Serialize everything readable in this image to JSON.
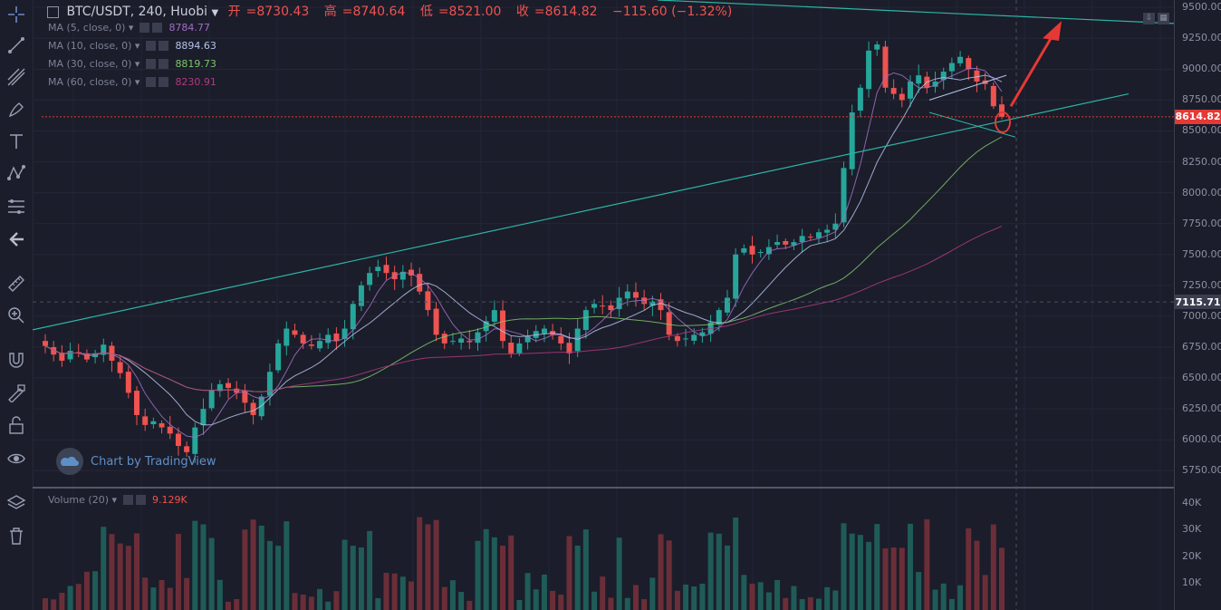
{
  "header": {
    "symbol": "BTC/USDT, 240, Huobi",
    "open_label": "开",
    "open": "8730.43",
    "high_label": "高",
    "high": "8740.64",
    "low_label": "低",
    "low": "8521.00",
    "close_label": "收",
    "close": "8614.82",
    "change": "−115.60 (−1.32%)"
  },
  "indicators": [
    {
      "label": "MA (5, close, 0)",
      "value": "8784.77",
      "color": "#a16ec4"
    },
    {
      "label": "MA (10, close, 0)",
      "value": "8894.63",
      "color": "#b5c3e8"
    },
    {
      "label": "MA (30, close, 0)",
      "value": "8819.73",
      "color": "#7fc46b"
    },
    {
      "label": "MA (60, close, 0)",
      "value": "8230.91",
      "color": "#b03a7f"
    }
  ],
  "volume": {
    "label": "Volume (20)",
    "value": "9.129K"
  },
  "watermark": "Chart by TradingView",
  "price_axis": {
    "ticks": [
      "9500.00",
      "9250.00",
      "9000.00",
      "8750.00",
      "8500.00",
      "8250.00",
      "8000.00",
      "7750.00",
      "7500.00",
      "7250.00",
      "7000.00",
      "6750.00",
      "6500.00",
      "6250.00",
      "6000.00",
      "5750.00"
    ],
    "tick_values": [
      9500,
      9250,
      9000,
      8750,
      8500,
      8250,
      8000,
      7750,
      7500,
      7250,
      7000,
      6750,
      6500,
      6250,
      6000,
      5750
    ],
    "current_price": "8614.82",
    "crosshair_price": "7115.71",
    "current_value": 8614.82,
    "crosshair_value": 7115.71
  },
  "volume_axis": {
    "ticks": [
      "40K",
      "30K",
      "20K",
      "10K"
    ],
    "tick_values": [
      40000,
      30000,
      20000,
      10000
    ]
  },
  "colors": {
    "up": "#26a69a",
    "down": "#ef5350",
    "accent": "#e53935",
    "trendline": "#2db4a6"
  },
  "toolbar": [
    "crosshair-icon",
    "trendline-icon",
    "fib-icon",
    "brush-icon",
    "text-icon",
    "pattern-icon",
    "measure-icon",
    "back-arrow-icon",
    "ruler-icon",
    "zoom-icon",
    "magnet-icon",
    "lock-draw-icon",
    "lock-icon",
    "eye-icon",
    "layers-icon",
    "trash-icon"
  ],
  "chart_data": {
    "type": "candlestick",
    "price_range": [
      5620,
      9560
    ],
    "closes": [
      6760,
      6690,
      6640,
      6720,
      6700,
      6650,
      6700,
      6770,
      6640,
      6540,
      6380,
      6200,
      6120,
      6150,
      6100,
      6050,
      5950,
      5900,
      6100,
      6250,
      6400,
      6450,
      6420,
      6380,
      6300,
      6200,
      6350,
      6550,
      6780,
      6900,
      6850,
      6780,
      6760,
      6800,
      6850,
      6800,
      6900,
      7100,
      7250,
      7350,
      7400,
      7350,
      7300,
      7360,
      7330,
      7200,
      7050,
      6850,
      6780,
      6800,
      6820,
      6790,
      6870,
      6960,
      7050,
      6800,
      6700,
      6780,
      6840,
      6880,
      6900,
      6850,
      6780,
      6700,
      6900,
      7050,
      7100,
      7080,
      7050,
      7150,
      7200,
      7150,
      7100,
      7120,
      7050,
      6850,
      6800,
      6820,
      6850,
      6870,
      6950,
      7050,
      7150,
      7500,
      7550,
      7500,
      7520,
      7560,
      7600,
      7580,
      7600,
      7650,
      7640,
      7680,
      7700,
      7750,
      8200,
      8650,
      8850,
      9150,
      9200,
      8850,
      8800,
      8750,
      8900,
      8950,
      8850,
      8900,
      8980,
      9050,
      9100,
      9000,
      8900,
      8880,
      8700,
      8614.82
    ]
  }
}
